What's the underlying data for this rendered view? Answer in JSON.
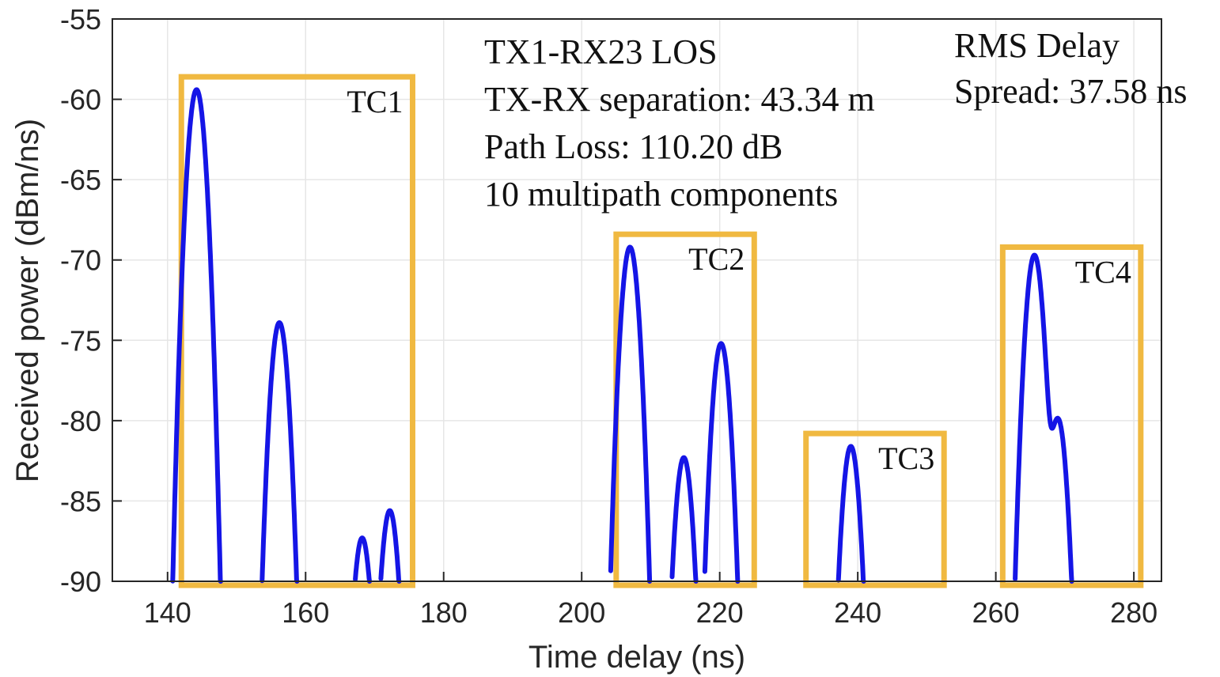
{
  "chart_data": {
    "type": "line",
    "xlabel": "Time delay (ns)",
    "ylabel": "Received power (dBm/ns)",
    "xlim": [
      132,
      284
    ],
    "ylim": [
      -90,
      -55
    ],
    "xticks": [
      140,
      160,
      180,
      200,
      220,
      240,
      260,
      280
    ],
    "yticks": [
      -55,
      -60,
      -65,
      -70,
      -75,
      -80,
      -85,
      -90
    ],
    "grid": true,
    "line_color": "#1515e6",
    "box_color": "#f0b941",
    "annotation": [
      "TX1-RX23 LOS",
      "TX-RX separation: 43.34 m",
      "Path Loss: 110.20 dB",
      "10 multipath components"
    ],
    "corner_note": [
      "RMS Delay",
      "Spread: 37.58 ns"
    ],
    "peaks": [
      {
        "delay": 144.2,
        "power": -59.4
      },
      {
        "delay": 156.2,
        "power": -73.9
      },
      {
        "delay": 168.2,
        "power": -87.3
      },
      {
        "delay": 172.2,
        "power": -85.6
      },
      {
        "delay": 207.0,
        "power": -69.2
      },
      {
        "delay": 214.8,
        "power": -82.3
      },
      {
        "delay": 220.2,
        "power": -75.2
      },
      {
        "delay": 239.0,
        "power": -81.6
      },
      {
        "delay": 265.6,
        "power": -69.7
      },
      {
        "delay": 269.0,
        "power": -79.9
      }
    ],
    "clusters": [
      {
        "label": "TC1",
        "delay_range": [
          142.0,
          175.5
        ],
        "top_power": -58.6
      },
      {
        "label": "TC2",
        "delay_range": [
          205.0,
          225.0
        ],
        "top_power": -68.4
      },
      {
        "label": "TC3",
        "delay_range": [
          232.5,
          252.5
        ],
        "top_power": -80.8
      },
      {
        "label": "TC4",
        "delay_range": [
          261.0,
          281.0
        ],
        "top_power": -69.2
      }
    ]
  }
}
